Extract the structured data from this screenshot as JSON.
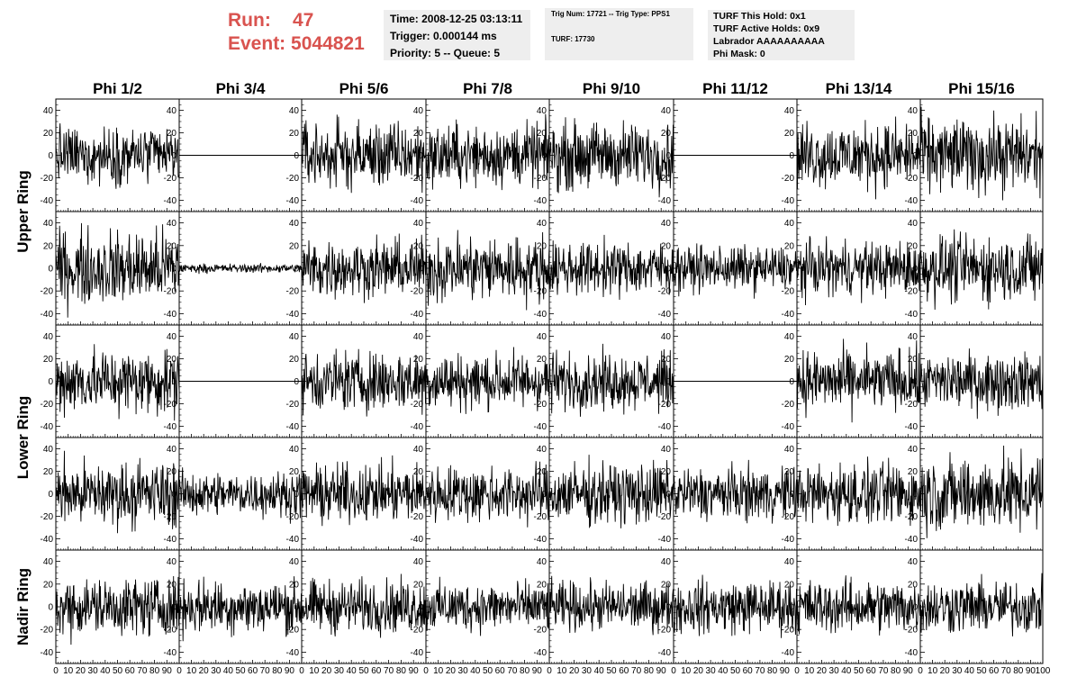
{
  "header": {
    "run_label": "Run:",
    "run_value": "47",
    "event_label": "Event:",
    "event_value": "5044821",
    "time": "Time: 2008-12-25 03:13:11",
    "trigger": "Trigger: 0.000144 ms",
    "priority": "Priority: 5 -- Queue: 5",
    "trig_num": "Trig Num: 17721 -- Trig Type: PPS1",
    "turf": "TURF: 17730",
    "turf_this_hold": "TURF This Hold: 0x1",
    "turf_active_holds": "TURF Active Holds: 0x9",
    "labrador": "Labrador AAAAAAAAAA",
    "phi_mask": "Phi Mask: 0"
  },
  "colors": {
    "accent": "#d9534f",
    "info_bg": "#eeeeee",
    "trace": "#000000"
  },
  "chart_data": {
    "type": "line",
    "columns": [
      "Phi 1/2",
      "Phi 3/4",
      "Phi 5/6",
      "Phi 7/8",
      "Phi 9/10",
      "Phi 11/12",
      "Phi 13/14",
      "Phi 15/16"
    ],
    "ring_labels": [
      "Upper Ring",
      "Lower Ring",
      "Nadir Ring"
    ],
    "rows": 5,
    "xlim": [
      0,
      100
    ],
    "ylim": [
      -50,
      50
    ],
    "x_tick_values": [
      0,
      10,
      20,
      30,
      40,
      50,
      60,
      70,
      80,
      90,
      100
    ],
    "x_tick_labels": [
      "0",
      "10",
      "20",
      "30",
      "40",
      "50",
      "60",
      "70",
      "80",
      "90",
      "100"
    ],
    "y_tick_values": [
      40,
      20,
      0,
      -20,
      -40
    ],
    "y_tick_labels": [
      "40",
      "20",
      "0",
      "-20",
      "-40"
    ],
    "trace_samples": 260,
    "panel_amplitudes": [
      [
        13,
        0,
        15,
        14,
        15,
        0,
        15,
        17
      ],
      [
        17,
        2,
        13,
        15,
        12,
        10,
        12,
        15
      ],
      [
        15,
        0,
        14,
        13,
        13,
        0,
        14,
        13
      ],
      [
        15,
        10,
        13,
        13,
        14,
        12,
        14,
        17
      ],
      [
        13,
        12,
        12,
        11,
        11,
        12,
        12,
        12
      ]
    ]
  }
}
